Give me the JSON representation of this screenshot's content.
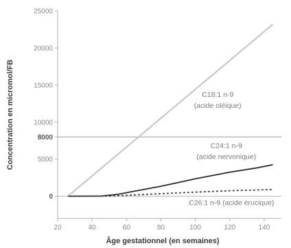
{
  "chart_data": {
    "type": "line",
    "xlabel": "Âge gestationnel (en semaines)",
    "ylabel": "Concentration en micromol/FB",
    "xlim": [
      20,
      150
    ],
    "ylim": [
      -3000,
      25000
    ],
    "x_ticks": [
      20,
      40,
      60,
      80,
      100,
      120,
      140
    ],
    "y_ticks": [
      0,
      5000,
      8000,
      10000,
      15000,
      20000,
      25000
    ],
    "y_ticks_bold": [
      0,
      8000
    ],
    "reference_lines": [
      8000,
      0
    ],
    "grid": false,
    "series": [
      {
        "name": "C18:1 n-9 (acide oléique)",
        "label_lines": [
          "C18:1 n-9",
          "(acide oléique)"
        ],
        "color": "#c8c8c8",
        "dash": "",
        "x": [
          26,
          145
        ],
        "y": [
          0,
          23200
        ]
      },
      {
        "name": "C24:1 n-9 (acide nervonique)",
        "label_lines": [
          "C24:1 n-9",
          "(acide nervonique)"
        ],
        "color": "#2a2a2a",
        "dash": "",
        "x": [
          26,
          45,
          55,
          65,
          80,
          100,
          120,
          135,
          145
        ],
        "y": [
          0,
          20,
          250,
          700,
          1350,
          2350,
          3250,
          3800,
          4250
        ]
      },
      {
        "name": "C26:1 n-9 (acide érucique)",
        "label_lines": [
          "C26:1 n-9 (acide érucique)"
        ],
        "color": "#444444",
        "dash": "3,3",
        "x": [
          26,
          50,
          60,
          80,
          100,
          120,
          145
        ],
        "y": [
          0,
          20,
          120,
          350,
          550,
          750,
          900
        ]
      }
    ]
  }
}
